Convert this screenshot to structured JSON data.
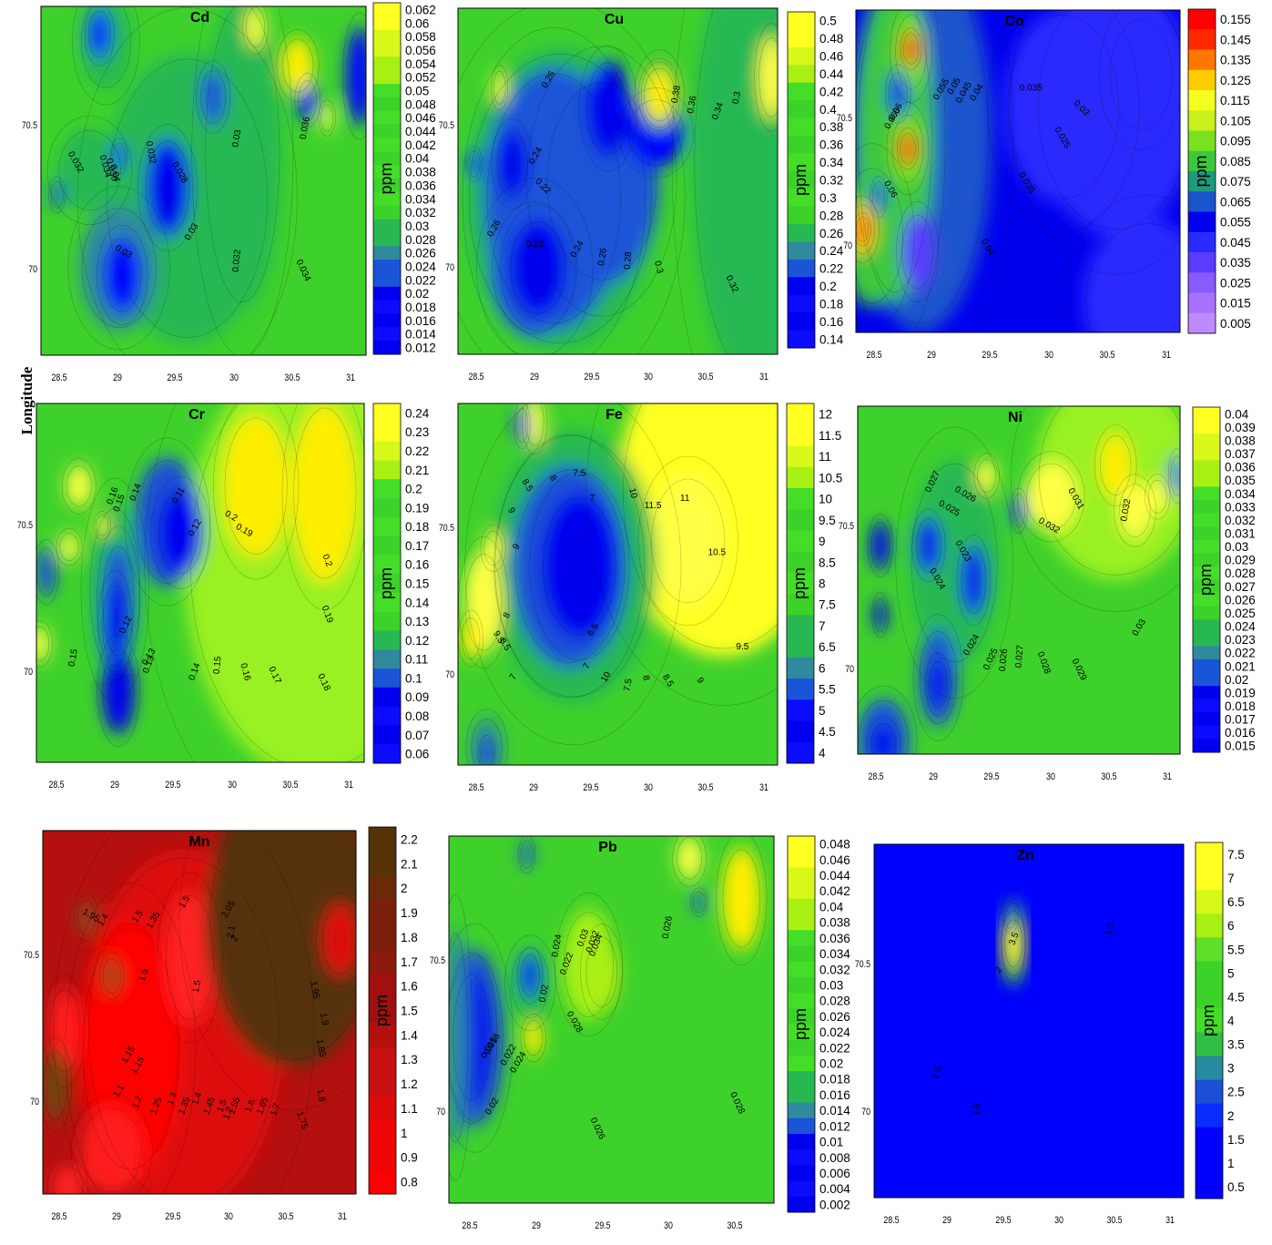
{
  "ylabel": "Longitude",
  "colorbar_unit": "ppm",
  "colors": {
    "green_low": [
      "#0000ff",
      "#1a4fd6",
      "#2f8a9e",
      "#27a85a",
      "#33c833",
      "#4fe01f"
    ],
    "green_main": "#3fd12b",
    "yellow": "#ffff00",
    "red_ramp": [
      "#ff0000",
      "#dd1010",
      "#b01010",
      "#8c1c0c",
      "#6a2a0a",
      "#553a08"
    ],
    "co_ramp": [
      "#b46cff",
      "#7a4cff",
      "#2222ff",
      "#1a66cc",
      "#22a866",
      "#44d844",
      "#99f022",
      "#ffe600",
      "#ff9900",
      "#ff2200"
    ]
  },
  "chart_data": [
    {
      "type": "heatmap",
      "title": "Cd",
      "x_ticks": [
        "28.5",
        "29",
        "29.5",
        "30",
        "30.5",
        "31"
      ],
      "y_ticks": [
        "70.5",
        "70"
      ],
      "colorbar": [
        "0.062",
        "0.06",
        "0.058",
        "0.056",
        "0.054",
        "0.052",
        "0.05",
        "0.048",
        "0.046",
        "0.044",
        "0.042",
        "0.04",
        "0.038",
        "0.036",
        "0.034",
        "0.032",
        "0.03",
        "0.028",
        "0.026",
        "0.024",
        "0.022",
        "0.02",
        "0.018",
        "0.016",
        "0.014",
        "0.012"
      ],
      "contour_labels": [
        "0.032",
        "0.034",
        "0.036",
        "0.04",
        "0.032",
        "0.028",
        "0.03",
        "0.03",
        "0.03",
        "0.036",
        "0.032",
        "0.034"
      ]
    },
    {
      "type": "heatmap",
      "title": "Cu",
      "x_ticks": [
        "28.5",
        "29",
        "29.5",
        "30",
        "30.5",
        "31"
      ],
      "y_ticks": [
        "70.5",
        "70"
      ],
      "colorbar": [
        "0.5",
        "0.48",
        "0.46",
        "0.44",
        "0.42",
        "0.4",
        "0.38",
        "0.36",
        "0.34",
        "0.32",
        "0.3",
        "0.28",
        "0.26",
        "0.24",
        "0.22",
        "0.2",
        "0.18",
        "0.16",
        "0.14"
      ],
      "contour_labels": [
        "0.26",
        "0.24",
        "0.22",
        "0.26",
        "0.22",
        "0.24",
        "0.26",
        "0.28",
        "0.3",
        "0.38",
        "0.36",
        "0.34",
        "0.3",
        "0.32"
      ]
    },
    {
      "type": "heatmap",
      "title": "Co",
      "x_ticks": [
        "28.5",
        "29",
        "29.5",
        "30",
        "30.5",
        "31"
      ],
      "y_ticks": [
        "70.5",
        "70"
      ],
      "colorbar": [
        "0.155",
        "0.145",
        "0.135",
        "0.125",
        "0.115",
        "0.105",
        "0.095",
        "0.085",
        "0.075",
        "0.065",
        "0.055",
        "0.045",
        "0.035",
        "0.025",
        "0.015",
        "0.005"
      ],
      "contour_labels": [
        "0.06",
        "0.065",
        "0.055",
        "0.05",
        "0.045",
        "0.04",
        "0.035",
        "0.025",
        "0.03",
        "0.035",
        "0.06",
        "0.04"
      ]
    },
    {
      "type": "heatmap",
      "title": "Cr",
      "x_ticks": [
        "28.5",
        "29",
        "29.5",
        "30",
        "30.5",
        "31"
      ],
      "y_ticks": [
        "70.5",
        "70"
      ],
      "colorbar": [
        "0.24",
        "0.23",
        "0.22",
        "0.21",
        "0.2",
        "0.19",
        "0.18",
        "0.17",
        "0.16",
        "0.15",
        "0.14",
        "0.13",
        "0.12",
        "0.11",
        "0.1",
        "0.09",
        "0.08",
        "0.07",
        "0.06"
      ],
      "contour_labels": [
        "0.16",
        "0.15",
        "0.14",
        "0.11",
        "0.13",
        "0.12",
        "0.2",
        "0.19",
        "0.2",
        "0.19",
        "0.15",
        "0.12",
        "0.13",
        "0.14",
        "0.15",
        "0.16",
        "0.17",
        "0.18"
      ]
    },
    {
      "type": "heatmap",
      "title": "Fe",
      "x_ticks": [
        "28.5",
        "29",
        "29.5",
        "30",
        "30.5",
        "31"
      ],
      "y_ticks": [
        "70.5",
        "70"
      ],
      "colorbar": [
        "12",
        "11.5",
        "11",
        "10.5",
        "10",
        "9.5",
        "9",
        "8.5",
        "8",
        "7.5",
        "7",
        "6.5",
        "6",
        "5.5",
        "5",
        "4.5",
        "4"
      ],
      "contour_labels": [
        "8.5",
        "8",
        "7.5",
        "9",
        "7",
        "10",
        "11.5",
        "11",
        "9",
        "10.5",
        "8",
        "6.5",
        "9.5",
        "8.5",
        "7",
        "10",
        "7.5",
        "8",
        "8.5",
        "9",
        "9.5",
        "7"
      ]
    },
    {
      "type": "heatmap",
      "title": "Ni",
      "x_ticks": [
        "28.5",
        "29",
        "29.5",
        "30",
        "30.5",
        "31"
      ],
      "y_ticks": [
        "70.5",
        "70"
      ],
      "colorbar": [
        "0.04",
        "0.039",
        "0.038",
        "0.037",
        "0.036",
        "0.035",
        "0.034",
        "0.033",
        "0.032",
        "0.031",
        "0.03",
        "0.029",
        "0.028",
        "0.027",
        "0.026",
        "0.025",
        "0.024",
        "0.023",
        "0.022",
        "0.021",
        "0.02",
        "0.019",
        "0.018",
        "0.017",
        "0.016",
        "0.015"
      ],
      "contour_labels": [
        "0.027",
        "0.026",
        "0.025",
        "0.023",
        "0.024",
        "0.032",
        "0.031",
        "0.032",
        "0.03",
        "0.024",
        "0.025",
        "0.026",
        "0.027",
        "0.028",
        "0.029"
      ]
    },
    {
      "type": "heatmap",
      "title": "Mn",
      "x_ticks": [
        "28.5",
        "29",
        "29.5",
        "30",
        "30.5",
        "31"
      ],
      "y_ticks": [
        "70.5",
        "70"
      ],
      "colorbar": [
        "2.2",
        "2.1",
        "2",
        "1.9",
        "1.8",
        "1.7",
        "1.6",
        "1.5",
        "1.4",
        "1.3",
        "1.2",
        "1.1",
        "1",
        "0.9",
        "0.8"
      ],
      "contour_labels": [
        "1.95",
        "1.4",
        "1.5",
        "1.35",
        "1.5",
        "1.5",
        "1.15",
        "1.5",
        "2.05",
        "2.1",
        "2",
        "1.95",
        "1.9",
        "1.85",
        "1.8",
        "1.75",
        "1.15",
        "1.1",
        "1.2",
        "1.25",
        "1.3",
        "1.35",
        "1.4",
        "1.45",
        "1.5",
        "1.55",
        "1.6",
        "1.65",
        "1.7",
        "1.2"
      ]
    },
    {
      "type": "heatmap",
      "title": "Pb",
      "x_ticks": [
        "28.5",
        "29",
        "29.5",
        "30",
        "30.5"
      ],
      "y_ticks": [
        "70.5",
        "70"
      ],
      "colorbar": [
        "0.048",
        "0.046",
        "0.044",
        "0.042",
        "0.04",
        "0.038",
        "0.036",
        "0.034",
        "0.032",
        "0.03",
        "0.028",
        "0.026",
        "0.024",
        "0.022",
        "0.02",
        "0.018",
        "0.016",
        "0.014",
        "0.012",
        "0.01",
        "0.008",
        "0.006",
        "0.004",
        "0.002"
      ],
      "contour_labels": [
        "0.03",
        "0.032",
        "0.034",
        "0.024",
        "0.022",
        "0.02",
        "0.018",
        "0.016",
        "0.022",
        "0.024",
        "0.028",
        "0.026",
        "0.02",
        "0.026",
        "0.028"
      ]
    },
    {
      "type": "heatmap",
      "title": "Zn",
      "x_ticks": [
        "28.5",
        "29",
        "29.5",
        "30",
        "30.5",
        "31"
      ],
      "y_ticks": [
        "70.5",
        "70"
      ],
      "colorbar": [
        "7.5",
        "7",
        "6.5",
        "6",
        "5.5",
        "5",
        "4.5",
        "4",
        "3.5",
        "3",
        "2.5",
        "2",
        "1.5",
        "1",
        "0.5"
      ],
      "contour_labels": [
        "2",
        "3.5",
        "1.5",
        "1.5",
        "1.5"
      ]
    }
  ]
}
